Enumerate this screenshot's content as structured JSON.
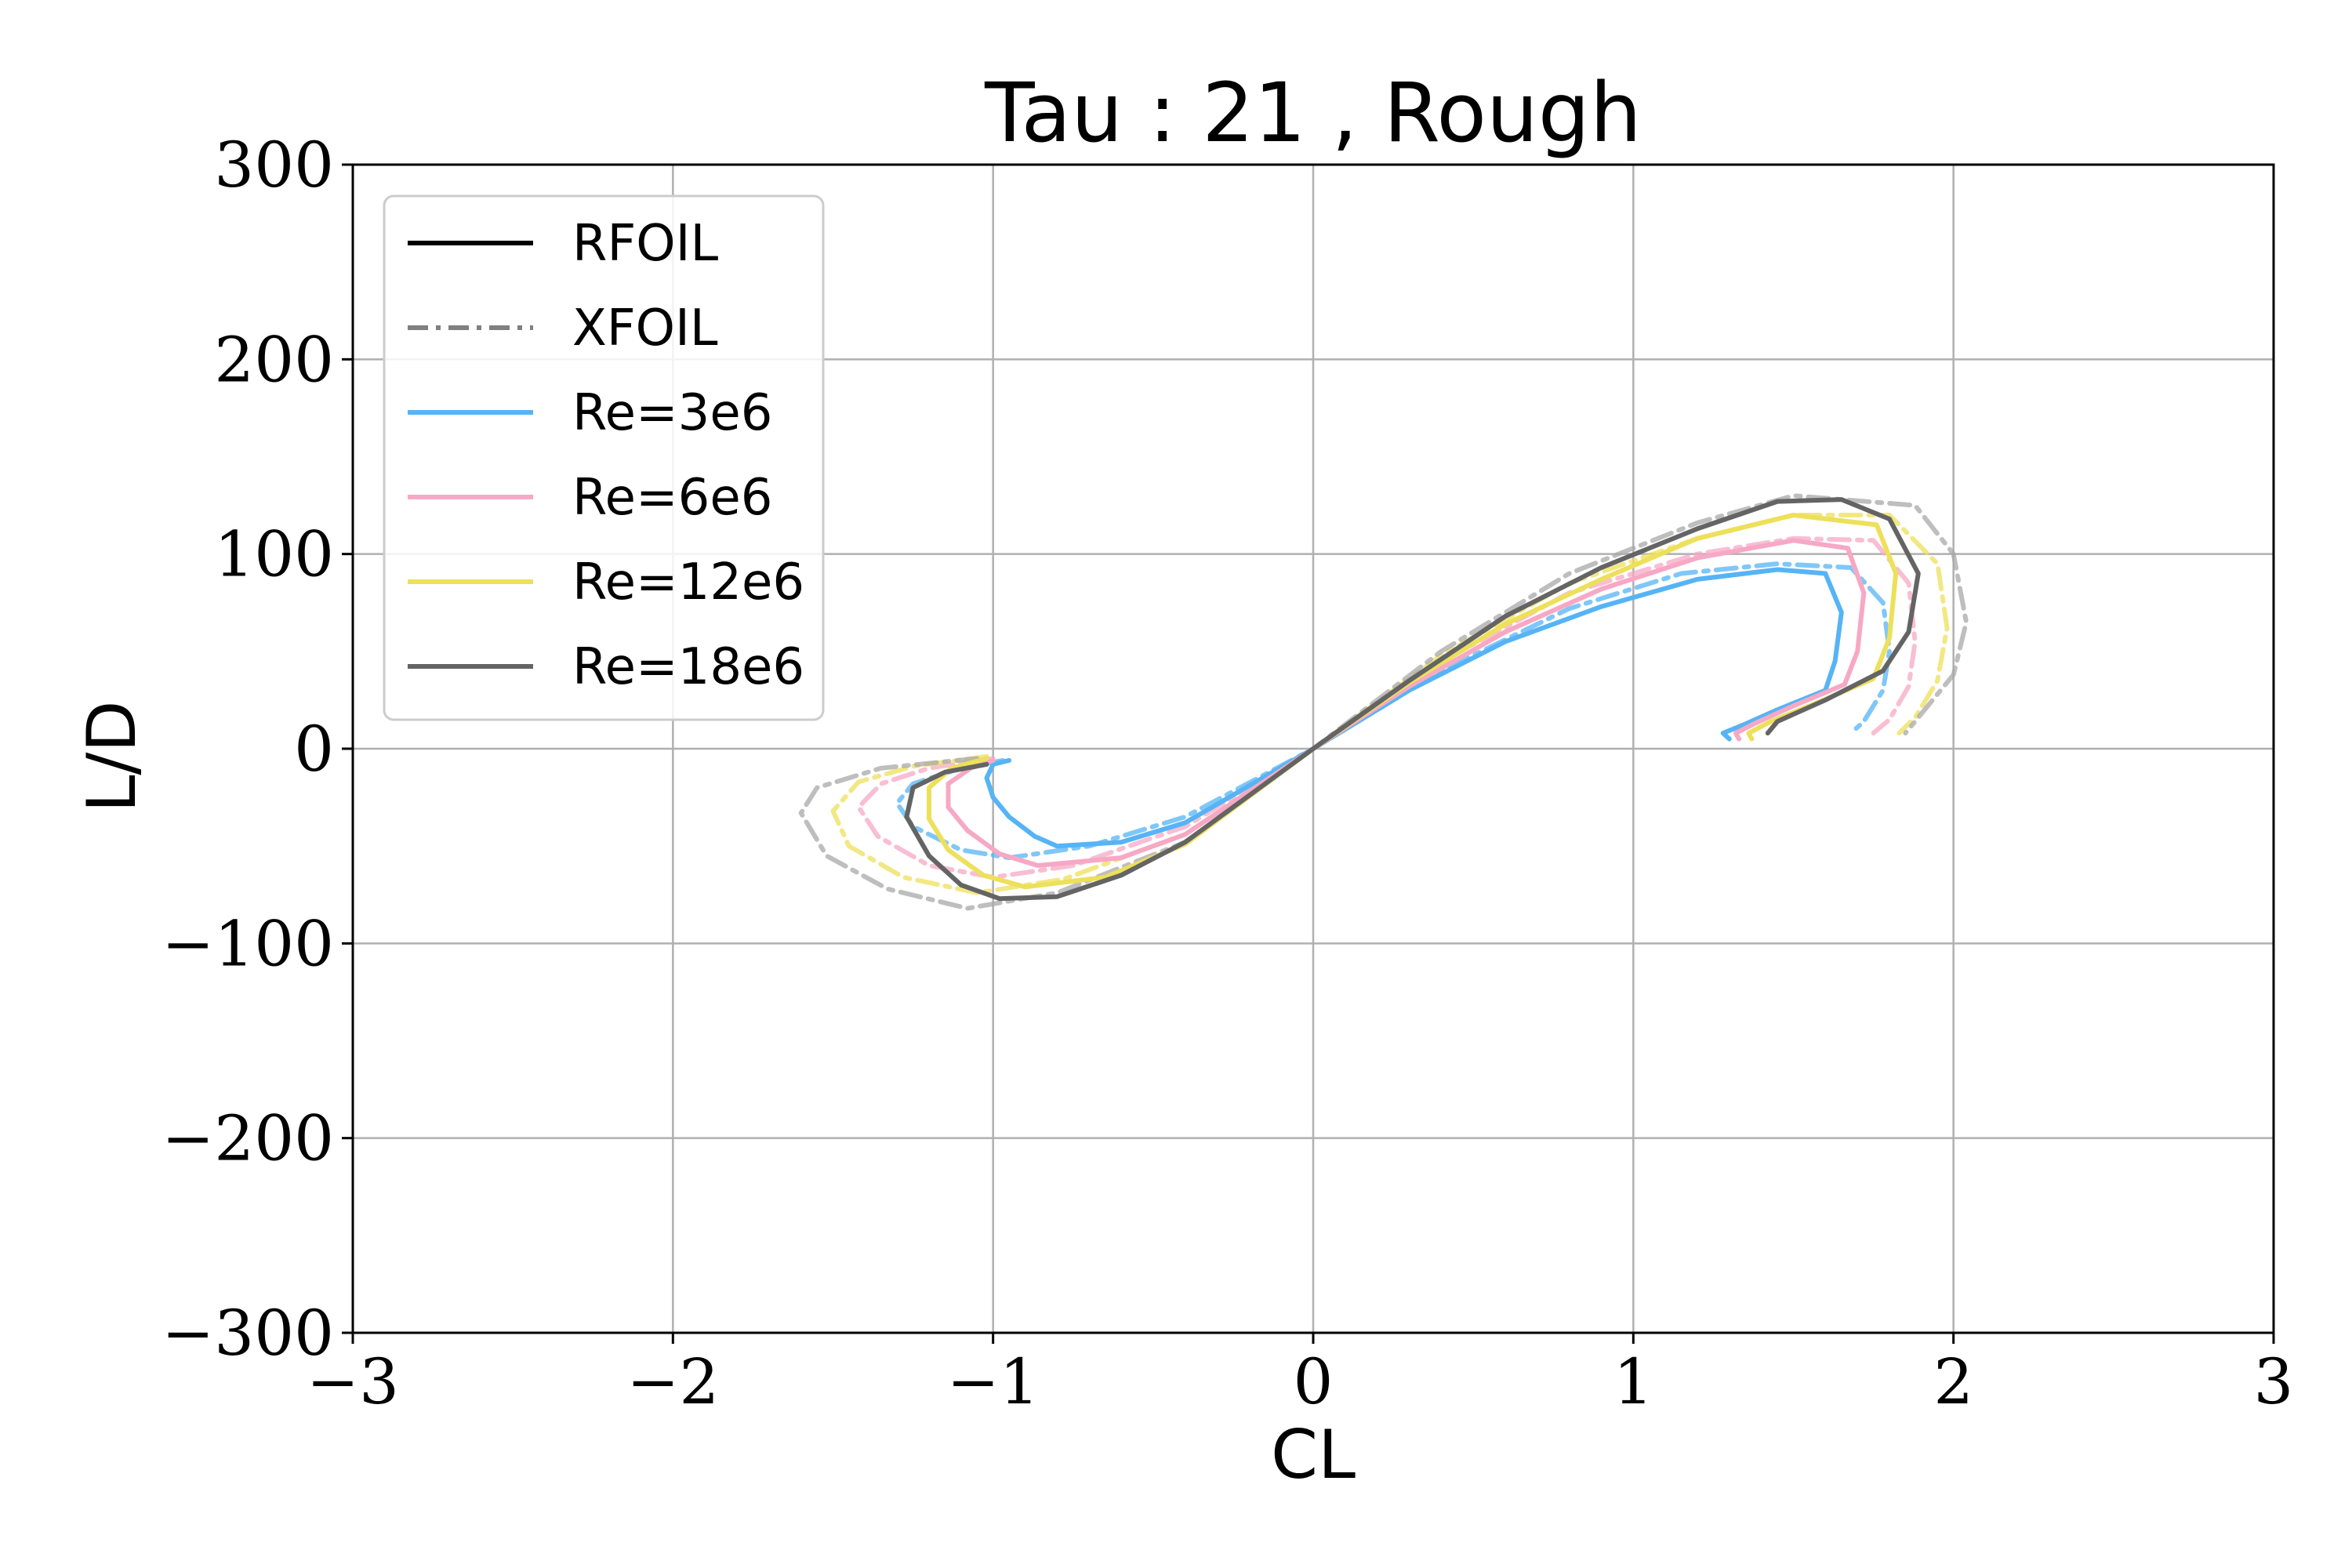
{
  "chart_data": {
    "type": "line",
    "title": "Tau : 21 , Rough",
    "xlabel": "CL",
    "ylabel": "L/D",
    "xlim": [
      -3,
      3
    ],
    "ylim": [
      -300,
      300
    ],
    "xticks": [
      -3,
      -2,
      -1,
      0,
      1,
      2,
      3
    ],
    "yticks": [
      -300,
      -200,
      -100,
      0,
      100,
      200,
      300
    ],
    "xtick_labels": [
      "−3",
      "−2",
      "−1",
      "0",
      "1",
      "2",
      "3"
    ],
    "ytick_labels": [
      "−300",
      "−200",
      "−100",
      "0",
      "100",
      "200",
      "300"
    ],
    "grid": true,
    "legend_position": "top-left",
    "legend": [
      {
        "label": "RFOIL",
        "color": "#000000",
        "style": "solid"
      },
      {
        "label": "XFOIL",
        "color": "#808080",
        "style": "dashdot"
      },
      {
        "label": "Re=3e6",
        "color": "#56b4f5",
        "style": "solid"
      },
      {
        "label": "Re=6e6",
        "color": "#f7a8c4",
        "style": "solid"
      },
      {
        "label": "Re=12e6",
        "color": "#ede05a",
        "style": "solid"
      },
      {
        "label": "Re=18e6",
        "color": "#646464",
        "style": "solid"
      }
    ],
    "series": [
      {
        "solver": "XFOIL",
        "re": "Re=3e6",
        "color": "#56b4f5",
        "style": "dashdot",
        "x": [
          -0.97,
          -1.1,
          -1.25,
          -1.3,
          -1.25,
          -1.1,
          -0.95,
          -0.7,
          -0.4,
          0,
          0.4,
          0.8,
          1.15,
          1.45,
          1.68,
          1.78,
          1.8,
          1.78,
          1.72,
          1.68
        ],
        "y": [
          -6,
          -10,
          -18,
          -28,
          -40,
          -52,
          -56,
          -50,
          -35,
          0,
          40,
          72,
          90,
          95,
          93,
          75,
          50,
          30,
          14,
          8
        ]
      },
      {
        "solver": "XFOIL",
        "re": "Re=6e6",
        "color": "#f7a8c4",
        "style": "dashdot",
        "x": [
          -1.0,
          -1.2,
          -1.35,
          -1.42,
          -1.36,
          -1.2,
          -1.0,
          -0.75,
          -0.4,
          0,
          0.4,
          0.8,
          1.2,
          1.5,
          1.75,
          1.86,
          1.88,
          1.86,
          1.8,
          1.75
        ],
        "y": [
          -5,
          -10,
          -18,
          -30,
          -45,
          -60,
          -66,
          -60,
          -40,
          0,
          45,
          80,
          100,
          108,
          107,
          85,
          55,
          32,
          15,
          8
        ]
      },
      {
        "solver": "XFOIL",
        "re": "Re=12e6",
        "color": "#ede05a",
        "style": "dashdot",
        "x": [
          -1.02,
          -1.25,
          -1.42,
          -1.5,
          -1.45,
          -1.28,
          -1.05,
          -0.78,
          -0.4,
          0,
          0.4,
          0.8,
          1.2,
          1.5,
          1.8,
          1.95,
          1.98,
          1.95,
          1.88,
          1.83
        ],
        "y": [
          -4,
          -9,
          -17,
          -32,
          -50,
          -66,
          -74,
          -67,
          -44,
          0,
          48,
          85,
          108,
          120,
          120,
          95,
          62,
          35,
          16,
          8
        ]
      },
      {
        "solver": "XFOIL",
        "re": "Re=18e6",
        "color": "#a8a8a8",
        "style": "dashdot",
        "x": [
          -1.05,
          -1.35,
          -1.55,
          -1.6,
          -1.52,
          -1.33,
          -1.08,
          -0.8,
          -0.4,
          0,
          0.4,
          0.8,
          1.2,
          1.5,
          1.88,
          2.0,
          2.04,
          2.0,
          1.9,
          1.85
        ],
        "y": [
          -5,
          -10,
          -20,
          -33,
          -55,
          -72,
          -82,
          -74,
          -48,
          0,
          50,
          90,
          116,
          130,
          125,
          100,
          65,
          38,
          18,
          8
        ]
      },
      {
        "solver": "RFOIL",
        "re": "Re=3e6",
        "color": "#56b4f5",
        "style": "solid",
        "x": [
          -0.95,
          -1.0,
          -1.02,
          -1.0,
          -0.95,
          -0.87,
          -0.8,
          -0.6,
          -0.4,
          0,
          0.3,
          0.6,
          0.9,
          1.2,
          1.45,
          1.6,
          1.65,
          1.63,
          1.6,
          1.45,
          1.34,
          1.28,
          1.3
        ],
        "y": [
          -6,
          -8,
          -15,
          -25,
          -35,
          -45,
          -50,
          -48,
          -38,
          0,
          30,
          55,
          73,
          87,
          92,
          90,
          70,
          45,
          30,
          20,
          12,
          8,
          5
        ]
      },
      {
        "solver": "RFOIL",
        "re": "Re=6e6",
        "color": "#f7a8c4",
        "style": "solid",
        "x": [
          -1.0,
          -1.07,
          -1.14,
          -1.14,
          -1.08,
          -0.98,
          -0.86,
          -0.6,
          -0.4,
          0,
          0.3,
          0.6,
          0.9,
          1.2,
          1.5,
          1.67,
          1.72,
          1.7,
          1.66,
          1.5,
          1.38,
          1.32,
          1.33
        ],
        "y": [
          -6,
          -10,
          -18,
          -30,
          -42,
          -54,
          -60,
          -56,
          -44,
          0,
          32,
          60,
          82,
          98,
          107,
          103,
          80,
          50,
          33,
          22,
          13,
          8,
          5
        ]
      },
      {
        "solver": "RFOIL",
        "re": "Re=12e6",
        "color": "#ede05a",
        "style": "solid",
        "x": [
          -1.02,
          -1.13,
          -1.2,
          -1.2,
          -1.14,
          -1.03,
          -0.9,
          -0.65,
          -0.4,
          0,
          0.3,
          0.6,
          0.9,
          1.2,
          1.5,
          1.76,
          1.82,
          1.8,
          1.75,
          1.58,
          1.43,
          1.36,
          1.37
        ],
        "y": [
          -5,
          -10,
          -20,
          -36,
          -52,
          -65,
          -71,
          -66,
          -49,
          0,
          34,
          64,
          87,
          108,
          120,
          115,
          90,
          57,
          36,
          24,
          14,
          8,
          5
        ]
      },
      {
        "solver": "RFOIL",
        "re": "Re=18e6",
        "color": "#646464",
        "style": "solid",
        "x": [
          -1.02,
          -1.15,
          -1.25,
          -1.27,
          -1.2,
          -1.1,
          -0.98,
          -0.8,
          -0.6,
          -0.4,
          0,
          0.3,
          0.6,
          0.9,
          1.2,
          1.45,
          1.65,
          1.8,
          1.89,
          1.86,
          1.78,
          1.6,
          1.45,
          1.42
        ],
        "y": [
          -8,
          -12,
          -20,
          -35,
          -55,
          -70,
          -77,
          -76,
          -65,
          -48,
          0,
          35,
          68,
          93,
          113,
          127,
          128,
          118,
          90,
          60,
          40,
          25,
          14,
          8
        ]
      }
    ]
  }
}
